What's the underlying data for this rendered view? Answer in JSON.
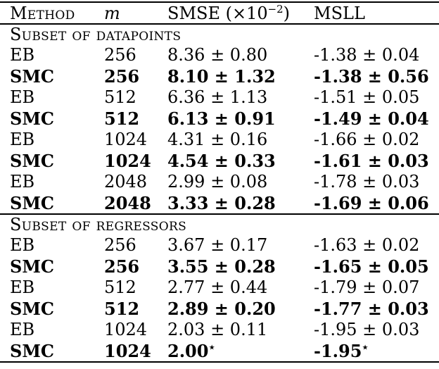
{
  "table": {
    "header": {
      "method": "Method",
      "m": "m",
      "smse_prefix": "SMSE (×10",
      "smse_sup": "−2",
      "smse_suffix": ")",
      "msll": "MSLL"
    },
    "sections": [
      {
        "title": "Subset of datapoints",
        "rows": [
          {
            "method": "EB",
            "m": "256",
            "smse": "8.36 ± 0.80",
            "msll": "-1.38 ± 0.04",
            "bold": false
          },
          {
            "method": "SMC",
            "m": "256",
            "smse": "8.10 ± 1.32",
            "msll": "-1.38 ± 0.56",
            "bold": true
          },
          {
            "method": "EB",
            "m": "512",
            "smse": "6.36 ± 1.13",
            "msll": "-1.51 ± 0.05",
            "bold": false
          },
          {
            "method": "SMC",
            "m": "512",
            "smse": "6.13 ± 0.91",
            "msll": "-1.49 ± 0.04",
            "bold": true
          },
          {
            "method": "EB",
            "m": "1024",
            "smse": "4.31 ± 0.16",
            "msll": "-1.66 ± 0.02",
            "bold": false
          },
          {
            "method": "SMC",
            "m": "1024",
            "smse": "4.54 ± 0.33",
            "msll": "-1.61 ± 0.03",
            "bold": true
          },
          {
            "method": "EB",
            "m": "2048",
            "smse": "2.99 ± 0.08",
            "msll": "-1.78 ± 0.03",
            "bold": false
          },
          {
            "method": "SMC",
            "m": "2048",
            "smse": "3.33 ± 0.28",
            "msll": "-1.69 ± 0.06",
            "bold": true
          }
        ]
      },
      {
        "title": "Subset of regressors",
        "rows": [
          {
            "method": "EB",
            "m": "256",
            "smse": "3.67 ± 0.17",
            "msll": "-1.63 ± 0.02",
            "bold": false
          },
          {
            "method": "SMC",
            "m": "256",
            "smse": "3.55 ± 0.28",
            "msll": "-1.65 ± 0.05",
            "bold": true
          },
          {
            "method": "EB",
            "m": "512",
            "smse": "2.77 ± 0.44",
            "msll": "-1.79 ± 0.07",
            "bold": false
          },
          {
            "method": "SMC",
            "m": "512",
            "smse": "2.89 ± 0.20",
            "msll": "-1.77 ± 0.03",
            "bold": true
          },
          {
            "method": "EB",
            "m": "1024",
            "smse": "2.03 ± 0.11",
            "msll": "-1.95 ± 0.03",
            "bold": false
          },
          {
            "method": "SMC",
            "m": "1024",
            "smse": "2.00",
            "smse_star": "⋆",
            "msll": "-1.95",
            "msll_star": "⋆",
            "bold": true
          }
        ]
      }
    ]
  },
  "colors": {
    "text": "#000000",
    "background": "#ffffff",
    "rule": "#000000"
  }
}
